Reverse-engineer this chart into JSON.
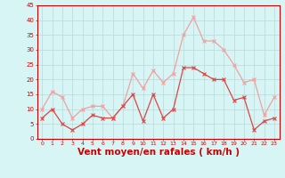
{
  "hours": [
    0,
    1,
    2,
    3,
    4,
    5,
    6,
    7,
    8,
    9,
    10,
    11,
    12,
    13,
    14,
    15,
    16,
    17,
    18,
    19,
    20,
    21,
    22,
    23
  ],
  "moyen": [
    7,
    10,
    5,
    3,
    5,
    8,
    7,
    7,
    11,
    15,
    6,
    15,
    7,
    10,
    24,
    24,
    22,
    20,
    20,
    13,
    14,
    3,
    6,
    7
  ],
  "rafales": [
    10,
    16,
    14,
    7,
    10,
    11,
    11,
    7,
    11,
    22,
    17,
    23,
    19,
    22,
    35,
    41,
    33,
    33,
    30,
    25,
    19,
    20,
    8,
    14
  ],
  "moyen_color": "#dd4444",
  "rafales_color": "#f0a0a0",
  "bg_color": "#d8f5f5",
  "grid_color": "#b8d8d8",
  "axis_color": "#cc0000",
  "xlabel": "Vent moyen/en rafales ( km/h )",
  "ylim": [
    0,
    45
  ],
  "yticks": [
    0,
    5,
    10,
    15,
    20,
    25,
    30,
    35,
    40,
    45
  ],
  "xtick_fontsize": 4.5,
  "ytick_fontsize": 5.0,
  "xlabel_fontsize": 7.5
}
